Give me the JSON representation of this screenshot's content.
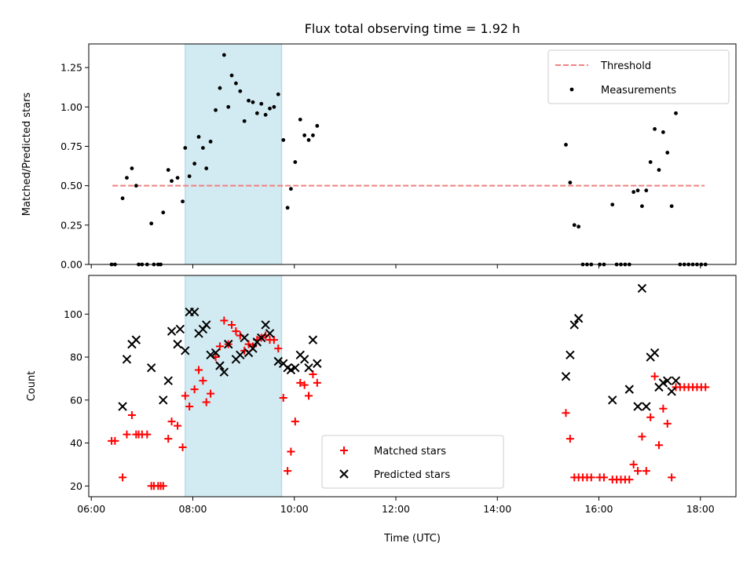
{
  "chart_data": {
    "type": "scatter",
    "title": "Flux total observing time = 1.92 h",
    "xlabel": "Time (UTC)",
    "x_ticks": [
      "06:00",
      "08:00",
      "10:00",
      "12:00",
      "14:00",
      "16:00",
      "18:00"
    ],
    "xlim": [
      "05:57",
      "18:42"
    ],
    "shaded_region": {
      "start": "07:51",
      "end": "09:45",
      "color": "#add8e6"
    },
    "top_panel": {
      "ylabel": "Matched/Predicted stars",
      "ylim": [
        0,
        1.4
      ],
      "y_ticks": [
        "0.00",
        "0.25",
        "0.50",
        "0.75",
        "1.00",
        "1.25"
      ],
      "legend_position": "upper right",
      "threshold": {
        "name": "Threshold",
        "value": 0.5,
        "x_range": [
          "06:25",
          "18:05"
        ],
        "color": "#f08080"
      },
      "series": [
        {
          "name": "Measurements",
          "color": "#000000",
          "points": [
            [
              "06:24",
              0
            ],
            [
              "06:28",
              0
            ],
            [
              "06:37",
              0.42
            ],
            [
              "06:42",
              0.55
            ],
            [
              "06:48",
              0.61
            ],
            [
              "06:53",
              0.5
            ],
            [
              "06:56",
              0
            ],
            [
              "07:00",
              0
            ],
            [
              "07:06",
              0
            ],
            [
              "07:11",
              0.26
            ],
            [
              "07:14",
              0
            ],
            [
              "07:19",
              0
            ],
            [
              "07:22",
              0
            ],
            [
              "07:25",
              0.33
            ],
            [
              "07:31",
              0.6
            ],
            [
              "07:35",
              0.53
            ],
            [
              "07:42",
              0.55
            ],
            [
              "07:48",
              0.4
            ],
            [
              "07:51",
              0.74
            ],
            [
              "07:56",
              0.56
            ],
            [
              "08:02",
              0.64
            ],
            [
              "08:07",
              0.81
            ],
            [
              "08:12",
              0.74
            ],
            [
              "08:16",
              0.61
            ],
            [
              "08:21",
              0.78
            ],
            [
              "08:27",
              0.98
            ],
            [
              "08:32",
              1.12
            ],
            [
              "08:37",
              1.33
            ],
            [
              "08:42",
              1.0
            ],
            [
              "08:46",
              1.2
            ],
            [
              "08:51",
              1.15
            ],
            [
              "08:56",
              1.1
            ],
            [
              "09:01",
              0.91
            ],
            [
              "09:06",
              1.04
            ],
            [
              "09:11",
              1.03
            ],
            [
              "09:16",
              0.96
            ],
            [
              "09:21",
              1.02
            ],
            [
              "09:26",
              0.95
            ],
            [
              "09:31",
              0.99
            ],
            [
              "09:36",
              1.0
            ],
            [
              "09:41",
              1.08
            ],
            [
              "09:47",
              0.79
            ],
            [
              "09:52",
              0.36
            ],
            [
              "09:56",
              0.48
            ],
            [
              "10:01",
              0.65
            ],
            [
              "10:07",
              0.92
            ],
            [
              "10:12",
              0.82
            ],
            [
              "10:17",
              0.79
            ],
            [
              "10:22",
              0.82
            ],
            [
              "10:27",
              0.88
            ],
            [
              "15:21",
              0.76
            ],
            [
              "15:26",
              0.52
            ],
            [
              "15:31",
              0.25
            ],
            [
              "15:36",
              0.24
            ],
            [
              "15:41",
              0
            ],
            [
              "15:46",
              0
            ],
            [
              "15:51",
              0
            ],
            [
              "16:01",
              0
            ],
            [
              "16:06",
              0
            ],
            [
              "16:16",
              0.38
            ],
            [
              "16:21",
              0
            ],
            [
              "16:26",
              0
            ],
            [
              "16:31",
              0
            ],
            [
              "16:36",
              0
            ],
            [
              "16:41",
              0.46
            ],
            [
              "16:46",
              0.47
            ],
            [
              "16:51",
              0.37
            ],
            [
              "16:56",
              0.47
            ],
            [
              "17:01",
              0.65
            ],
            [
              "17:06",
              0.86
            ],
            [
              "17:11",
              0.6
            ],
            [
              "17:16",
              0.84
            ],
            [
              "17:21",
              0.71
            ],
            [
              "17:26",
              0.37
            ],
            [
              "17:31",
              0.96
            ],
            [
              "17:36",
              0
            ],
            [
              "17:41",
              0
            ],
            [
              "17:46",
              0
            ],
            [
              "17:51",
              0
            ],
            [
              "17:56",
              0
            ],
            [
              "18:01",
              0
            ],
            [
              "18:06",
              0
            ]
          ]
        }
      ]
    },
    "bottom_panel": {
      "ylabel": "Count",
      "ylim": [
        15,
        118
      ],
      "y_ticks": [
        "20",
        "40",
        "60",
        "80",
        "100"
      ],
      "legend_position": "lower center",
      "series": [
        {
          "name": "Matched stars",
          "marker": "plus",
          "color": "#ff0000",
          "points": [
            [
              "06:24",
              41
            ],
            [
              "06:28",
              41
            ],
            [
              "06:37",
              24
            ],
            [
              "06:42",
              44
            ],
            [
              "06:48",
              53
            ],
            [
              "06:53",
              44
            ],
            [
              "06:56",
              44
            ],
            [
              "07:00",
              44
            ],
            [
              "07:06",
              44
            ],
            [
              "07:11",
              20
            ],
            [
              "07:14",
              20
            ],
            [
              "07:19",
              20
            ],
            [
              "07:22",
              20
            ],
            [
              "07:25",
              20
            ],
            [
              "07:31",
              42
            ],
            [
              "07:35",
              50
            ],
            [
              "07:42",
              48
            ],
            [
              "07:48",
              38
            ],
            [
              "07:51",
              62
            ],
            [
              "07:56",
              57
            ],
            [
              "08:02",
              65
            ],
            [
              "08:07",
              74
            ],
            [
              "08:12",
              69
            ],
            [
              "08:16",
              59
            ],
            [
              "08:21",
              63
            ],
            [
              "08:27",
              80
            ],
            [
              "08:32",
              85
            ],
            [
              "08:37",
              97
            ],
            [
              "08:42",
              86
            ],
            [
              "08:46",
              95
            ],
            [
              "08:51",
              92
            ],
            [
              "08:56",
              90
            ],
            [
              "09:01",
              83
            ],
            [
              "09:06",
              86
            ],
            [
              "09:11",
              85
            ],
            [
              "09:16",
              88
            ],
            [
              "09:21",
              89
            ],
            [
              "09:26",
              90
            ],
            [
              "09:31",
              88
            ],
            [
              "09:36",
              88
            ],
            [
              "09:41",
              84
            ],
            [
              "09:47",
              61
            ],
            [
              "09:52",
              27
            ],
            [
              "09:56",
              36
            ],
            [
              "10:01",
              50
            ],
            [
              "10:07",
              68
            ],
            [
              "10:12",
              67
            ],
            [
              "10:17",
              62
            ],
            [
              "10:22",
              72
            ],
            [
              "10:27",
              68
            ],
            [
              "15:21",
              54
            ],
            [
              "15:26",
              42
            ],
            [
              "15:31",
              24
            ],
            [
              "15:36",
              24
            ],
            [
              "15:41",
              24
            ],
            [
              "15:46",
              24
            ],
            [
              "15:51",
              24
            ],
            [
              "16:01",
              24
            ],
            [
              "16:06",
              24
            ],
            [
              "16:16",
              23
            ],
            [
              "16:21",
              23
            ],
            [
              "16:26",
              23
            ],
            [
              "16:31",
              23
            ],
            [
              "16:36",
              23
            ],
            [
              "16:41",
              30
            ],
            [
              "16:46",
              27
            ],
            [
              "16:51",
              43
            ],
            [
              "16:56",
              27
            ],
            [
              "17:01",
              52
            ],
            [
              "17:06",
              71
            ],
            [
              "17:11",
              39
            ],
            [
              "17:16",
              56
            ],
            [
              "17:21",
              49
            ],
            [
              "17:26",
              24
            ],
            [
              "17:31",
              66
            ],
            [
              "17:36",
              66
            ],
            [
              "17:41",
              66
            ],
            [
              "17:46",
              66
            ],
            [
              "17:51",
              66
            ],
            [
              "17:56",
              66
            ],
            [
              "18:01",
              66
            ],
            [
              "18:06",
              66
            ]
          ]
        },
        {
          "name": "Predicted stars",
          "marker": "x",
          "color": "#000000",
          "points": [
            [
              "06:37",
              57
            ],
            [
              "06:42",
              79
            ],
            [
              "06:48",
              86
            ],
            [
              "06:53",
              88
            ],
            [
              "07:11",
              75
            ],
            [
              "07:25",
              60
            ],
            [
              "07:31",
              69
            ],
            [
              "07:35",
              92
            ],
            [
              "07:42",
              86
            ],
            [
              "07:45",
              93
            ],
            [
              "07:51",
              83
            ],
            [
              "07:56",
              101
            ],
            [
              "08:02",
              101
            ],
            [
              "08:07",
              91
            ],
            [
              "08:12",
              93
            ],
            [
              "08:16",
              95
            ],
            [
              "08:21",
              81
            ],
            [
              "08:27",
              82
            ],
            [
              "08:32",
              76
            ],
            [
              "08:37",
              73
            ],
            [
              "08:42",
              86
            ],
            [
              "08:51",
              79
            ],
            [
              "08:56",
              81
            ],
            [
              "09:01",
              89
            ],
            [
              "09:06",
              82
            ],
            [
              "09:11",
              84
            ],
            [
              "09:16",
              87
            ],
            [
              "09:21",
              89
            ],
            [
              "09:26",
              95
            ],
            [
              "09:31",
              91
            ],
            [
              "09:41",
              78
            ],
            [
              "09:47",
              77
            ],
            [
              "09:52",
              75
            ],
            [
              "09:56",
              74
            ],
            [
              "10:01",
              75
            ],
            [
              "10:07",
              81
            ],
            [
              "10:12",
              79
            ],
            [
              "10:17",
              75
            ],
            [
              "10:22",
              88
            ],
            [
              "10:27",
              77
            ],
            [
              "15:21",
              71
            ],
            [
              "15:26",
              81
            ],
            [
              "15:31",
              95
            ],
            [
              "15:36",
              98
            ],
            [
              "16:16",
              60
            ],
            [
              "16:36",
              65
            ],
            [
              "16:46",
              57
            ],
            [
              "16:51",
              112
            ],
            [
              "16:56",
              57
            ],
            [
              "17:01",
              80
            ],
            [
              "17:06",
              82
            ],
            [
              "17:11",
              66
            ],
            [
              "17:16",
              68
            ],
            [
              "17:21",
              69
            ],
            [
              "17:26",
              64
            ],
            [
              "17:31",
              69
            ]
          ]
        }
      ]
    }
  }
}
